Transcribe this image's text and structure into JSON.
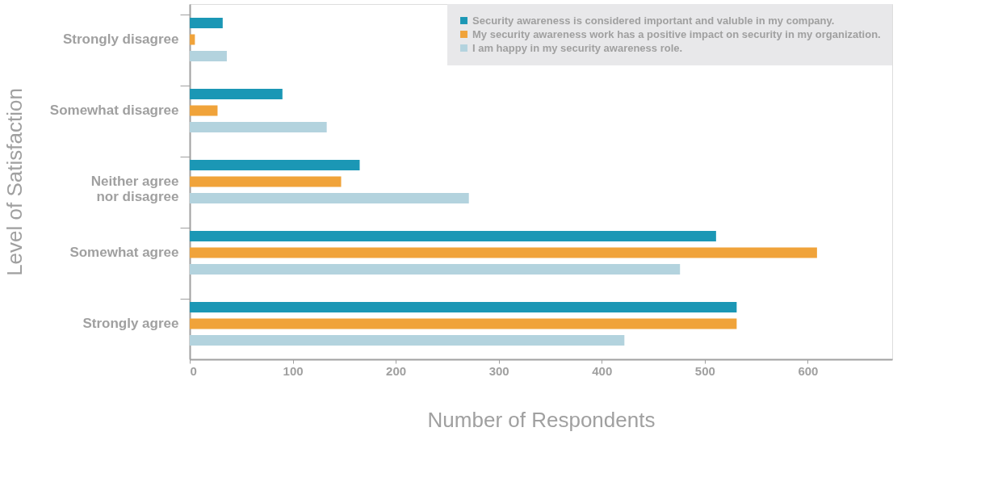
{
  "chart_data": {
    "type": "bar",
    "orientation": "horizontal",
    "xlabel": "Number of Respondents",
    "ylabel": "Level of Satisfaction",
    "categories": [
      "Strongly disagree",
      "Somewhat disagree",
      "Neither agree\nnor disagree",
      "Somewhat agree",
      "Strongly agree"
    ],
    "series": [
      {
        "name": "Security awareness is considered important and valuble in my company.",
        "color": "#1b97b5",
        "values": [
          32,
          90,
          165,
          511,
          531
        ]
      },
      {
        "name": "My security awareness work has a positive impact on security in my organization.",
        "color": "#f0a33a",
        "values": [
          5,
          27,
          147,
          609,
          531
        ]
      },
      {
        "name": "I am happy in my security awareness role.",
        "color": "#b3d3de",
        "values": [
          36,
          133,
          271,
          476,
          422
        ]
      }
    ],
    "xlim": [
      0,
      682
    ],
    "xticks": [
      0,
      100,
      200,
      300,
      400,
      500,
      600
    ],
    "grid": false,
    "legend": "top right"
  }
}
